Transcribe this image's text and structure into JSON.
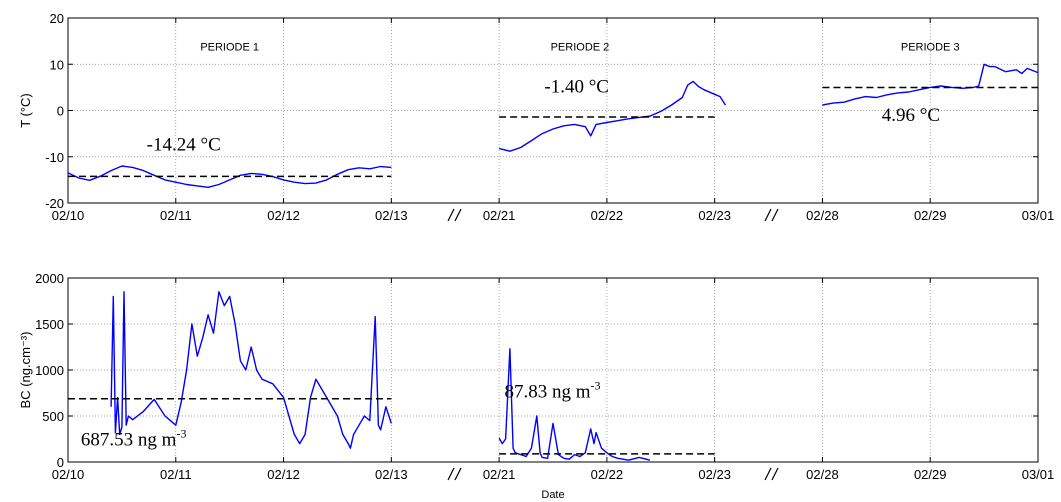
{
  "chart_data": [
    {
      "type": "line",
      "ylabel": "T (°C)",
      "ylim": [
        -20,
        20
      ],
      "yticks": [
        "20",
        "10",
        "0",
        "-10",
        "-20"
      ],
      "xlim": [
        0,
        9
      ],
      "xticks": [
        "02/10",
        "02/11",
        "02/12",
        "02/13",
        "02/21",
        "02/22",
        "02/23",
        "02/28",
        "02/29",
        "03/01"
      ],
      "grid": true,
      "period_labels": [
        {
          "text": "PERIODE 1",
          "x": 1.5,
          "y": 13
        },
        {
          "text": "PERIODE 2",
          "x": 4.75,
          "y": 13
        },
        {
          "text": "PERIODE 3",
          "x": 8.0,
          "y": 13
        }
      ],
      "means": [
        {
          "label": "-14.24 °C",
          "value": -14.24,
          "x0": 0,
          "x1": 3,
          "label_x": 0.73,
          "label_y": -8.6
        },
        {
          "label": "-1.40 °C",
          "value": -1.4,
          "x0": 4,
          "x1": 6,
          "label_x": 4.42,
          "label_y": 3.9
        },
        {
          "label": "4.96 °C",
          "value": 4.96,
          "x0": 7,
          "x1": 9,
          "label_x": 7.55,
          "label_y": -2.3
        }
      ],
      "series": [
        {
          "color": "#0000ff",
          "points": [
            [
              0,
              -13.5
            ],
            [
              0.1,
              -14.6
            ],
            [
              0.2,
              -15.1
            ],
            [
              0.3,
              -14.2
            ],
            [
              0.4,
              -13.0
            ],
            [
              0.5,
              -12.0
            ],
            [
              0.6,
              -12.3
            ],
            [
              0.7,
              -13.0
            ],
            [
              0.8,
              -14.0
            ],
            [
              0.9,
              -15.0
            ],
            [
              1.0,
              -15.5
            ],
            [
              1.1,
              -16.0
            ],
            [
              1.2,
              -16.3
            ],
            [
              1.3,
              -16.6
            ],
            [
              1.4,
              -16.0
            ],
            [
              1.5,
              -15.0
            ],
            [
              1.6,
              -14.0
            ],
            [
              1.7,
              -13.6
            ],
            [
              1.8,
              -13.8
            ],
            [
              1.9,
              -14.3
            ],
            [
              2.0,
              -15.0
            ],
            [
              2.1,
              -15.5
            ],
            [
              2.2,
              -15.8
            ],
            [
              2.3,
              -15.7
            ],
            [
              2.4,
              -15.0
            ],
            [
              2.5,
              -13.8
            ],
            [
              2.6,
              -12.8
            ],
            [
              2.7,
              -12.4
            ],
            [
              2.8,
              -12.6
            ],
            [
              2.9,
              -12.1
            ],
            [
              3.0,
              -12.3
            ]
          ]
        },
        {
          "color": "#0000ff",
          "points": [
            [
              4.0,
              -8.2
            ],
            [
              4.1,
              -8.8
            ],
            [
              4.2,
              -8.0
            ],
            [
              4.3,
              -6.5
            ],
            [
              4.4,
              -5.0
            ],
            [
              4.5,
              -4.0
            ],
            [
              4.6,
              -3.3
            ],
            [
              4.7,
              -3.0
            ],
            [
              4.8,
              -3.5
            ],
            [
              4.85,
              -5.5
            ],
            [
              4.9,
              -3.0
            ],
            [
              5.0,
              -2.6
            ],
            [
              5.1,
              -2.2
            ],
            [
              5.2,
              -1.8
            ],
            [
              5.3,
              -1.5
            ],
            [
              5.4,
              -1.2
            ],
            [
              5.5,
              -0.2
            ],
            [
              5.6,
              1.2
            ],
            [
              5.7,
              2.8
            ],
            [
              5.75,
              5.5
            ],
            [
              5.8,
              6.3
            ],
            [
              5.85,
              5.2
            ],
            [
              5.9,
              4.5
            ],
            [
              6.0,
              3.5
            ],
            [
              6.05,
              3.0
            ],
            [
              6.1,
              1.2
            ]
          ]
        },
        {
          "color": "#0000ff",
          "points": [
            [
              7.0,
              1.2
            ],
            [
              7.1,
              1.6
            ],
            [
              7.2,
              1.8
            ],
            [
              7.3,
              2.5
            ],
            [
              7.4,
              3.0
            ],
            [
              7.5,
              2.8
            ],
            [
              7.6,
              3.4
            ],
            [
              7.7,
              3.8
            ],
            [
              7.8,
              4.0
            ],
            [
              7.9,
              4.5
            ],
            [
              8.0,
              5.0
            ],
            [
              8.1,
              5.3
            ],
            [
              8.2,
              5.0
            ],
            [
              8.3,
              4.8
            ],
            [
              8.4,
              5.0
            ],
            [
              8.45,
              5.3
            ],
            [
              8.5,
              10.0
            ],
            [
              8.55,
              9.5
            ],
            [
              8.6,
              9.5
            ],
            [
              8.7,
              8.4
            ],
            [
              8.8,
              8.8
            ],
            [
              8.85,
              8.0
            ],
            [
              8.9,
              9.1
            ],
            [
              9.0,
              8.2
            ]
          ]
        }
      ]
    },
    {
      "type": "line",
      "ylabel": "BC (ng.cm⁻³)",
      "xlabel": "Date",
      "ylim": [
        0,
        2000
      ],
      "yticks": [
        "2000",
        "1500",
        "1000",
        "500",
        "0"
      ],
      "xlim": [
        0,
        9
      ],
      "xticks": [
        "02/10",
        "02/11",
        "02/12",
        "02/13",
        "02/21",
        "02/22",
        "02/23",
        "02/28",
        "02/29",
        "03/01"
      ],
      "grid": true,
      "means": [
        {
          "label": "687.53 ng m",
          "sup": "-3",
          "value": 687.53,
          "x0": 0,
          "x1": 3,
          "label_x": 0.12,
          "label_y": 180
        },
        {
          "label": "87.83 ng m",
          "sup": "-3",
          "value": 87.83,
          "x0": 4,
          "x1": 6,
          "label_x": 4.05,
          "label_y": 700
        }
      ],
      "series": [
        {
          "color": "#0000ff",
          "points": [
            [
              0.4,
              600
            ],
            [
              0.42,
              1800
            ],
            [
              0.44,
              320
            ],
            [
              0.46,
              700
            ],
            [
              0.48,
              300
            ],
            [
              0.5,
              380
            ],
            [
              0.52,
              1850
            ],
            [
              0.54,
              400
            ],
            [
              0.56,
              500
            ],
            [
              0.6,
              460
            ],
            [
              0.7,
              550
            ],
            [
              0.8,
              680
            ],
            [
              0.9,
              500
            ],
            [
              1.0,
              400
            ],
            [
              1.05,
              650
            ],
            [
              1.1,
              1000
            ],
            [
              1.15,
              1500
            ],
            [
              1.2,
              1150
            ],
            [
              1.25,
              1350
            ],
            [
              1.3,
              1600
            ],
            [
              1.35,
              1400
            ],
            [
              1.4,
              1850
            ],
            [
              1.45,
              1700
            ],
            [
              1.5,
              1800
            ],
            [
              1.55,
              1500
            ],
            [
              1.6,
              1100
            ],
            [
              1.65,
              1000
            ],
            [
              1.7,
              1250
            ],
            [
              1.75,
              1000
            ],
            [
              1.8,
              900
            ],
            [
              1.9,
              850
            ],
            [
              2.0,
              700
            ],
            [
              2.05,
              500
            ],
            [
              2.1,
              300
            ],
            [
              2.15,
              200
            ],
            [
              2.2,
              300
            ],
            [
              2.25,
              700
            ],
            [
              2.3,
              900
            ],
            [
              2.35,
              800
            ],
            [
              2.4,
              700
            ],
            [
              2.5,
              500
            ],
            [
              2.55,
              300
            ],
            [
              2.6,
              200
            ],
            [
              2.62,
              150
            ],
            [
              2.65,
              300
            ],
            [
              2.7,
              400
            ],
            [
              2.75,
              500
            ],
            [
              2.8,
              450
            ],
            [
              2.85,
              1580
            ],
            [
              2.88,
              400
            ],
            [
              2.9,
              350
            ],
            [
              2.95,
              600
            ],
            [
              3.0,
              420
            ]
          ]
        },
        {
          "color": "#0000ff",
          "points": [
            [
              4.0,
              260
            ],
            [
              4.03,
              200
            ],
            [
              4.06,
              250
            ],
            [
              4.1,
              1230
            ],
            [
              4.13,
              150
            ],
            [
              4.15,
              100
            ],
            [
              4.2,
              80
            ],
            [
              4.25,
              60
            ],
            [
              4.3,
              150
            ],
            [
              4.35,
              500
            ],
            [
              4.38,
              100
            ],
            [
              4.4,
              50
            ],
            [
              4.45,
              40
            ],
            [
              4.5,
              420
            ],
            [
              4.55,
              80
            ],
            [
              4.6,
              40
            ],
            [
              4.65,
              30
            ],
            [
              4.7,
              80
            ],
            [
              4.75,
              60
            ],
            [
              4.8,
              100
            ],
            [
              4.85,
              360
            ],
            [
              4.88,
              200
            ],
            [
              4.9,
              320
            ],
            [
              4.95,
              150
            ],
            [
              5.0,
              100
            ],
            [
              5.05,
              60
            ],
            [
              5.1,
              40
            ],
            [
              5.15,
              30
            ],
            [
              5.2,
              20
            ],
            [
              5.3,
              50
            ],
            [
              5.4,
              20
            ]
          ]
        }
      ]
    }
  ]
}
